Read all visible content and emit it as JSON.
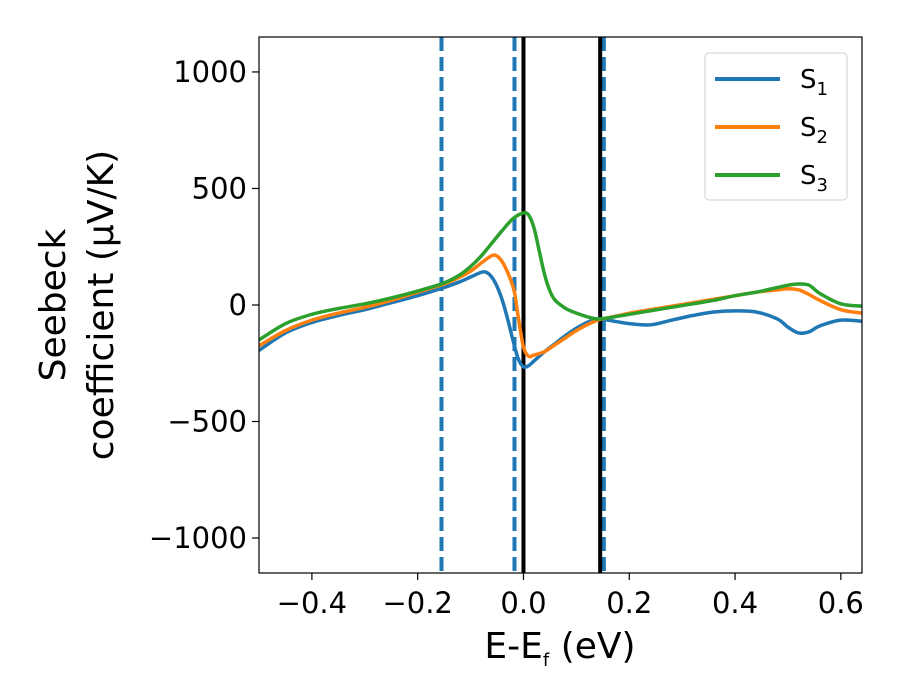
{
  "chart_data": {
    "type": "line",
    "xlabel_main": "E-E",
    "xlabel_sub": "f",
    "xlabel_unit": " (eV)",
    "ylabel_line1": "Seebeck",
    "ylabel_line2": "coefficient  (μV/K)",
    "xlim": [
      -0.5,
      0.64
    ],
    "ylim": [
      -1150,
      1150
    ],
    "xticks": [
      -0.4,
      -0.2,
      0.0,
      0.2,
      0.4,
      0.6
    ],
    "xtick_labels": [
      "−0.4",
      "−0.2",
      "0.0",
      "0.2",
      "0.4",
      "0.6"
    ],
    "yticks": [
      -1000,
      -500,
      0,
      500,
      1000
    ],
    "ytick_labels": [
      "−1000",
      "−500",
      "0",
      "500",
      "1000"
    ],
    "legend_position": "top-right",
    "grid": false,
    "vertical_lines": [
      {
        "x": -0.155,
        "style": "dashed",
        "color": "#1f77b4"
      },
      {
        "x": -0.017,
        "style": "dashed",
        "color": "#1f77b4"
      },
      {
        "x": 0.152,
        "style": "dashed",
        "color": "#1f77b4"
      },
      {
        "x": 0.0,
        "style": "solid",
        "color": "#000000"
      },
      {
        "x": 0.145,
        "style": "solid",
        "color": "#000000"
      }
    ],
    "series": [
      {
        "name": "S",
        "sub": "1",
        "color": "#1f77b4",
        "x": [
          -0.5,
          -0.45,
          -0.4,
          -0.35,
          -0.3,
          -0.25,
          -0.2,
          -0.15,
          -0.12,
          -0.1,
          -0.08,
          -0.07,
          -0.06,
          -0.05,
          -0.04,
          -0.03,
          -0.02,
          -0.01,
          0.0,
          0.01,
          0.02,
          0.04,
          0.06,
          0.08,
          0.1,
          0.12,
          0.14,
          0.16,
          0.2,
          0.24,
          0.28,
          0.32,
          0.36,
          0.4,
          0.44,
          0.48,
          0.5,
          0.52,
          0.54,
          0.56,
          0.6,
          0.64
        ],
        "y": [
          -195,
          -120,
          -75,
          -45,
          -20,
          10,
          40,
          75,
          100,
          120,
          140,
          140,
          120,
          80,
          20,
          -60,
          -150,
          -230,
          -265,
          -260,
          -240,
          -200,
          -165,
          -130,
          -100,
          -75,
          -60,
          -65,
          -80,
          -85,
          -65,
          -45,
          -30,
          -25,
          -30,
          -60,
          -95,
          -120,
          -115,
          -90,
          -65,
          -70
        ]
      },
      {
        "name": "S",
        "sub": "2",
        "color": "#ff7f0e",
        "x": [
          -0.5,
          -0.45,
          -0.4,
          -0.35,
          -0.3,
          -0.25,
          -0.2,
          -0.15,
          -0.12,
          -0.1,
          -0.08,
          -0.06,
          -0.05,
          -0.04,
          -0.03,
          -0.02,
          -0.015,
          -0.01,
          0.0,
          0.01,
          0.02,
          0.04,
          0.06,
          0.08,
          0.1,
          0.12,
          0.14,
          0.16,
          0.2,
          0.24,
          0.28,
          0.32,
          0.36,
          0.4,
          0.44,
          0.48,
          0.5,
          0.52,
          0.54,
          0.56,
          0.6,
          0.64
        ],
        "y": [
          -175,
          -110,
          -65,
          -35,
          -10,
          20,
          55,
          90,
          120,
          145,
          180,
          212,
          210,
          185,
          140,
          80,
          30,
          -50,
          -180,
          -220,
          -215,
          -200,
          -170,
          -140,
          -110,
          -85,
          -65,
          -55,
          -35,
          -20,
          -5,
          10,
          25,
          40,
          55,
          65,
          70,
          65,
          45,
          20,
          -20,
          -35
        ]
      },
      {
        "name": "S",
        "sub": "3",
        "color": "#2ca02c",
        "x": [
          -0.5,
          -0.45,
          -0.4,
          -0.35,
          -0.3,
          -0.25,
          -0.2,
          -0.15,
          -0.12,
          -0.1,
          -0.08,
          -0.06,
          -0.04,
          -0.02,
          0.0,
          0.01,
          0.02,
          0.03,
          0.04,
          0.05,
          0.06,
          0.08,
          0.1,
          0.12,
          0.14,
          0.16,
          0.2,
          0.24,
          0.28,
          0.32,
          0.36,
          0.4,
          0.44,
          0.48,
          0.5,
          0.52,
          0.54,
          0.56,
          0.6,
          0.64
        ],
        "y": [
          -150,
          -80,
          -40,
          -15,
          5,
          30,
          60,
          95,
          130,
          165,
          210,
          265,
          320,
          370,
          395,
          385,
          330,
          230,
          130,
          60,
          20,
          -15,
          -35,
          -50,
          -60,
          -55,
          -40,
          -25,
          -10,
          5,
          20,
          40,
          55,
          75,
          85,
          90,
          85,
          50,
          5,
          -5
        ]
      }
    ]
  }
}
